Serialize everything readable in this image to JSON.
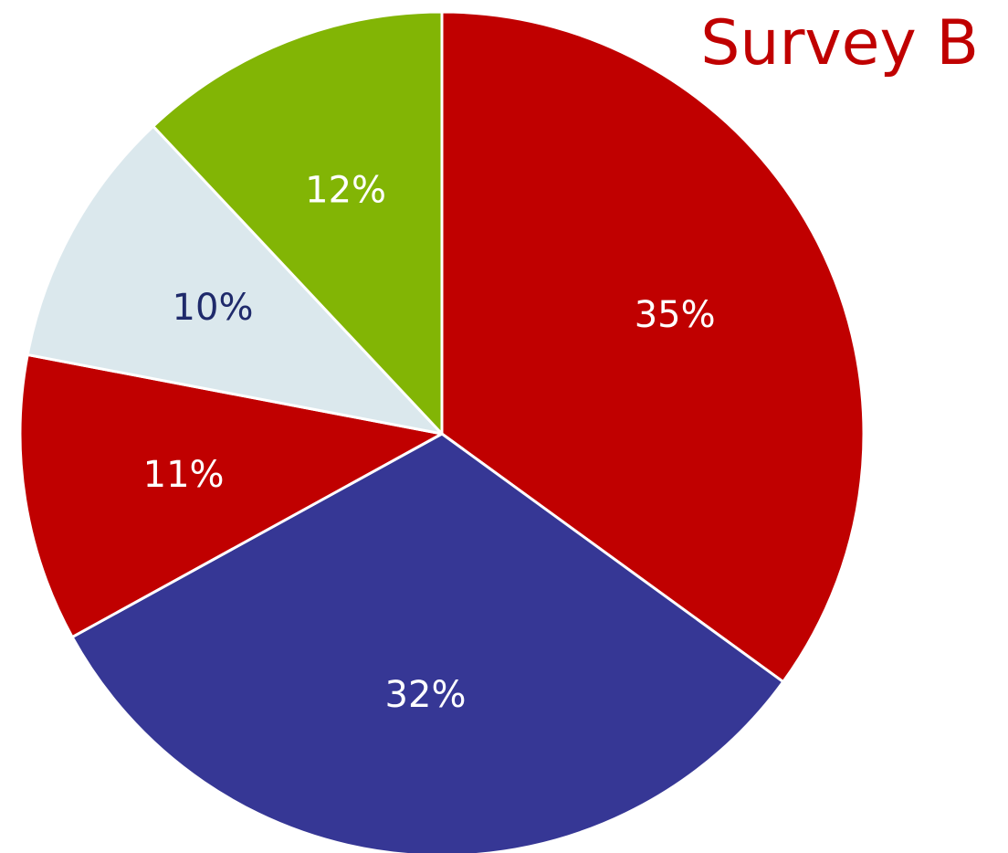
{
  "chart_data": {
    "type": "pie",
    "title": "Survey B",
    "slices": [
      {
        "label": "35%",
        "value": 35,
        "color": "#c00000",
        "label_color": "#ffffff"
      },
      {
        "label": "32%",
        "value": 32,
        "color": "#363795",
        "label_color": "#ffffff"
      },
      {
        "label": "11%",
        "value": 11,
        "color": "#c00000",
        "label_color": "#ffffff"
      },
      {
        "label": "10%",
        "value": 10,
        "color": "#dbe8ed",
        "label_color": "#1f2a6b"
      },
      {
        "label": "12%",
        "value": 12,
        "color": "#82b505",
        "label_color": "#ffffff"
      }
    ],
    "start_direction": "top",
    "order": "clockwise",
    "title_color": "#c00000",
    "slice_border_color": "#ffffff"
  }
}
